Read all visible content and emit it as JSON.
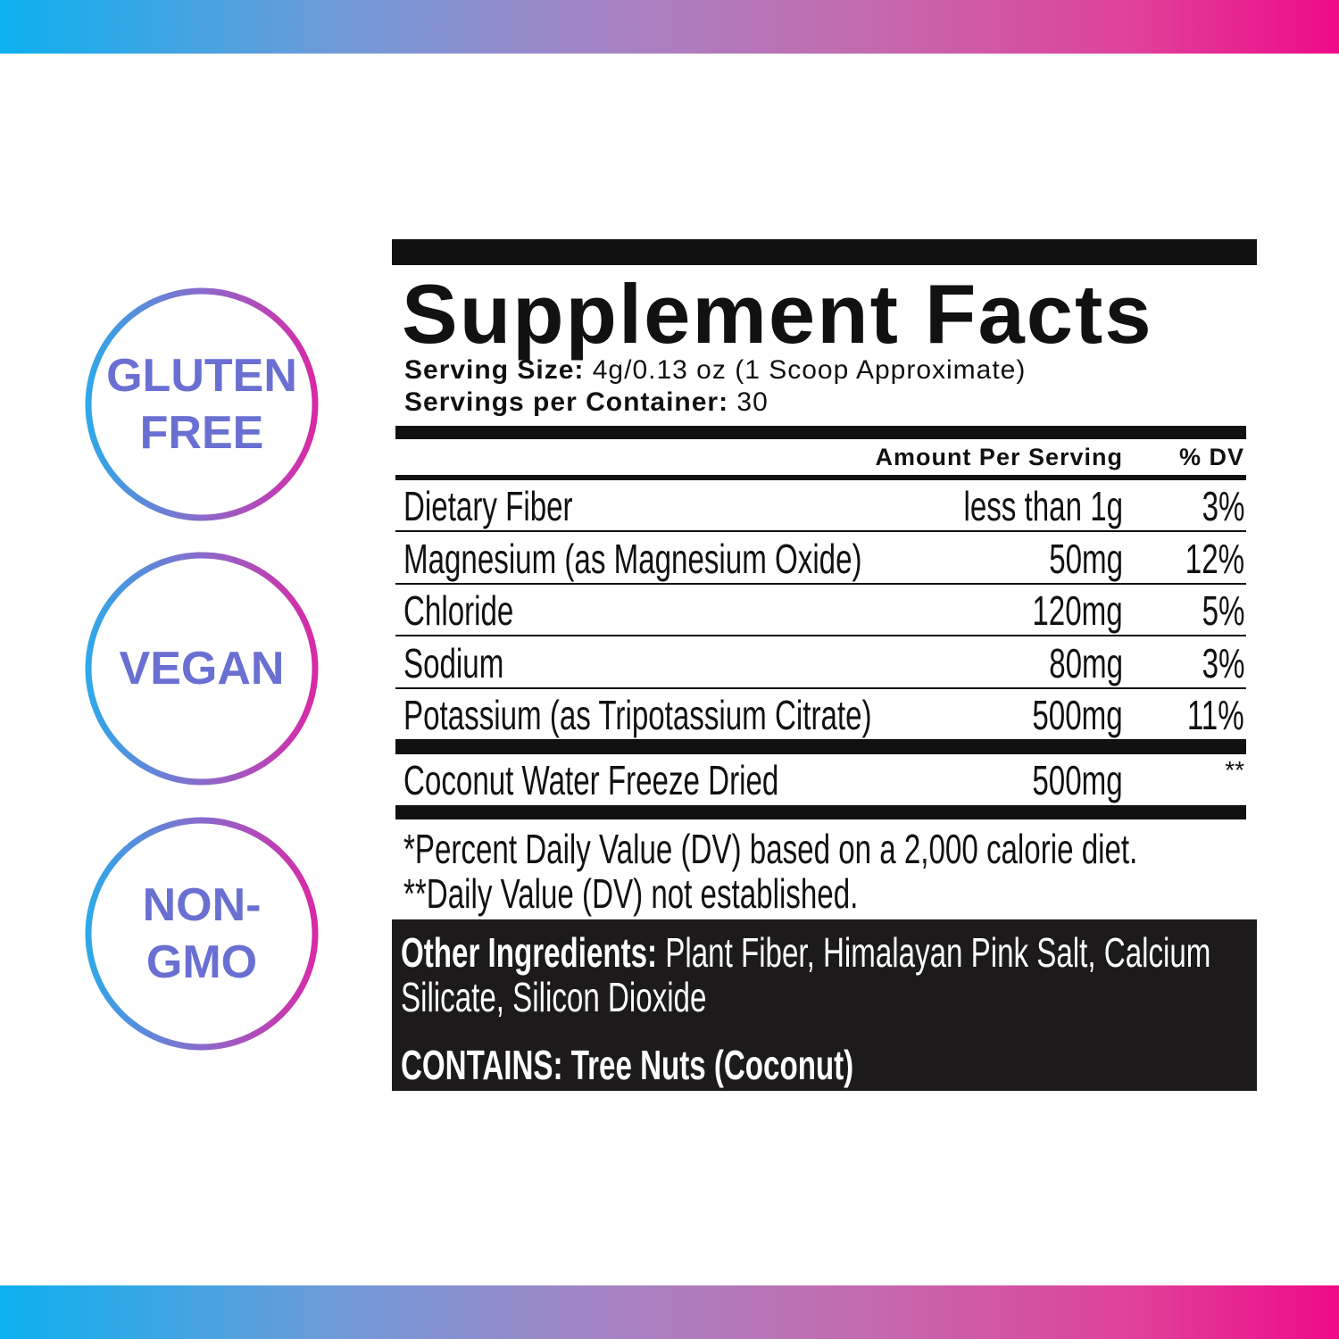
{
  "colors": {
    "gradient_start": "#0db0ee",
    "gradient_end": "#ee0a88",
    "panel_black": "#111111"
  },
  "badges": [
    {
      "lines": [
        "GLUTEN",
        "FREE"
      ]
    },
    {
      "lines": [
        "VEGAN"
      ]
    },
    {
      "lines": [
        "NON-",
        "GMO"
      ]
    }
  ],
  "facts": {
    "title": "Supplement Facts",
    "serving_size_label": "Serving Size:",
    "serving_size_value": "4g/0.13 oz (1 Scoop Approximate)",
    "servings_label": "Servings per Container:",
    "servings_value": "30",
    "header_amount": "Amount Per Serving",
    "header_dv": "% DV",
    "rows": [
      {
        "name": "Dietary Fiber",
        "amount": "less than 1g",
        "dv": "3%"
      },
      {
        "name": "Magnesium (as Magnesium Oxide)",
        "amount": "50mg",
        "dv": "12%"
      },
      {
        "name": "Chloride",
        "amount": "120mg",
        "dv": "5%"
      },
      {
        "name": "Sodium",
        "amount": "80mg",
        "dv": "3%"
      },
      {
        "name": "Potassium (as Tripotassium Citrate)",
        "amount": "500mg",
        "dv": "11%"
      }
    ],
    "extra_row": {
      "name": "Coconut Water Freeze Dried",
      "amount": "500mg",
      "dv": "**"
    },
    "footnote1": "*Percent Daily Value (DV) based on a 2,000 calorie diet.",
    "footnote2": "**Daily Value (DV) not established.",
    "other_label": "Other Ingredients:",
    "other_value_line1": "Plant Fiber, Himalayan Pink Salt, Calcium",
    "other_value_line2": "Silicate, Silicon Dioxide",
    "contains": "CONTAINS: Tree Nuts (Coconut)"
  }
}
